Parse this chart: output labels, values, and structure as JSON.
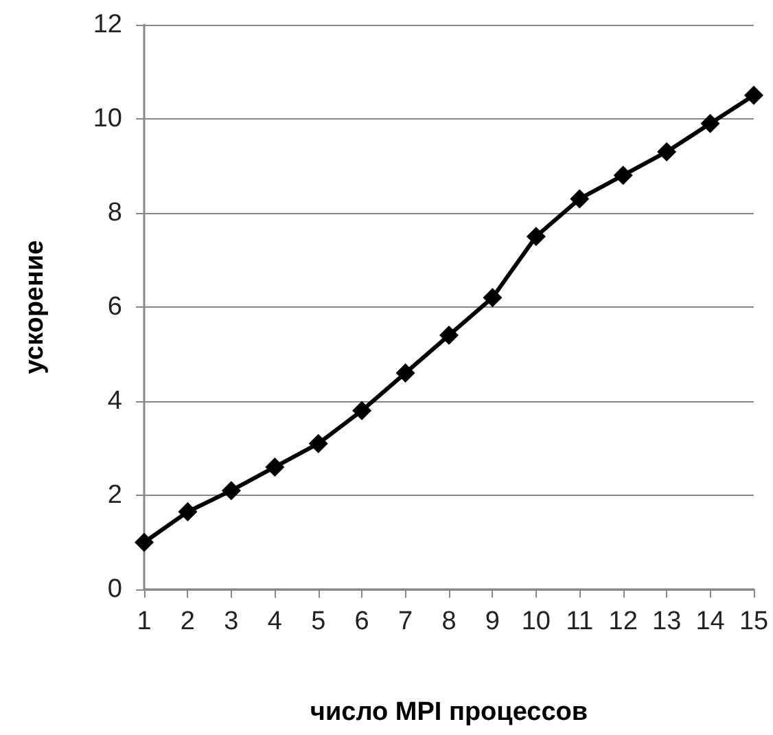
{
  "chart_data": {
    "type": "line",
    "xlabel": "число MPI процессов",
    "ylabel": "ускорение",
    "categories": [
      "1",
      "2",
      "3",
      "4",
      "5",
      "6",
      "7",
      "8",
      "9",
      "10",
      "11",
      "12",
      "13",
      "14",
      "15"
    ],
    "series": [
      {
        "color": "#000000",
        "values": [
          1.0,
          1.65,
          2.1,
          2.6,
          3.1,
          3.8,
          4.6,
          5.4,
          6.2,
          7.5,
          8.3,
          8.8,
          9.3,
          9.9,
          10.5
        ]
      }
    ],
    "ylim": [
      0,
      12
    ],
    "yticks": [
      0,
      2,
      4,
      6,
      8,
      10,
      12
    ],
    "grid": "y",
    "marker": "diamond",
    "line_style": "solid"
  }
}
